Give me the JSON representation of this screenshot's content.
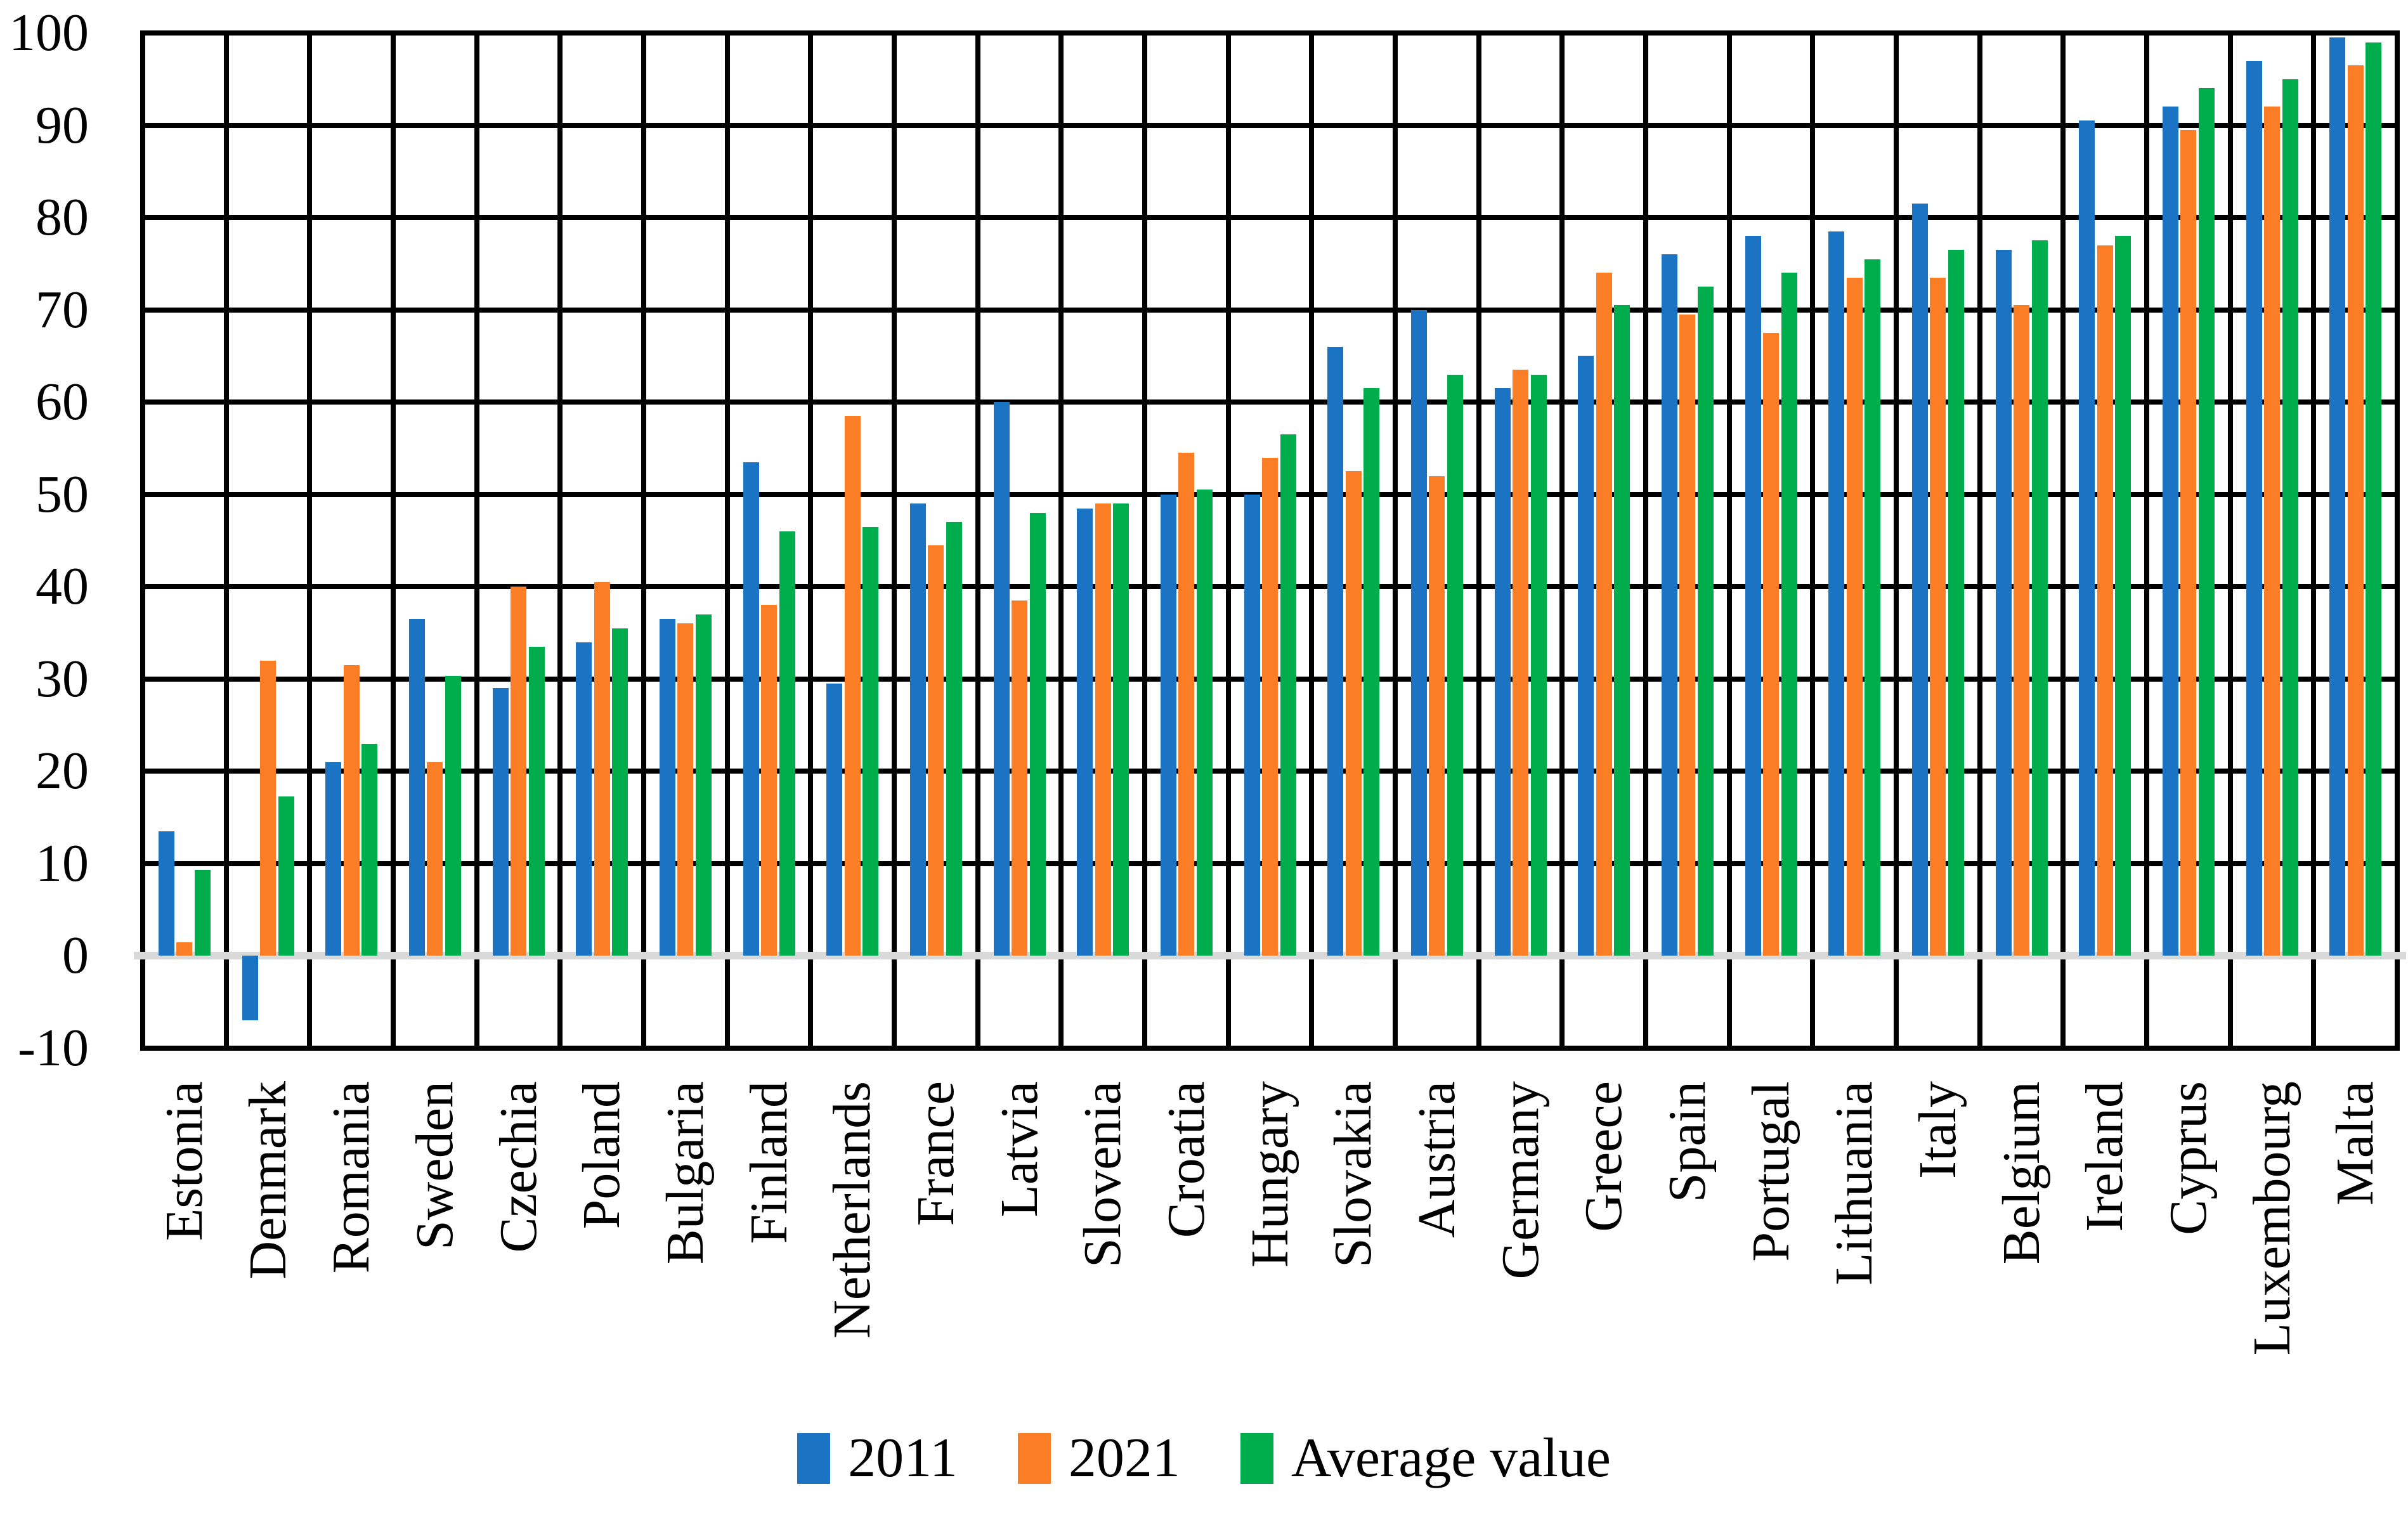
{
  "chart_data": {
    "type": "bar",
    "title": "",
    "xlabel": "",
    "ylabel": "",
    "ylim": [
      -10,
      100
    ],
    "ytick_step": 10,
    "yticks": [
      100,
      90,
      80,
      70,
      60,
      50,
      40,
      30,
      20,
      10,
      0,
      -10
    ],
    "grid": "both",
    "grid_color": "#000000",
    "zero_line_color": "#d9d9d9",
    "background_color": "#ffffff",
    "legend_position": "bottom",
    "categories": [
      "Estonia",
      "Denmark",
      "Romania",
      "Sweden",
      "Czechia",
      "Poland",
      "Bulgaria",
      "Finland",
      "Netherlands",
      "France",
      "Latvia",
      "Slovenia",
      "Croatia",
      "Hungary",
      "Slovakia",
      "Austria",
      "Germany",
      "Greece",
      "Spain",
      "Portugal",
      "Lithuania",
      "Italy",
      "Belgium",
      "Ireland",
      "Cyprus",
      "Luxembourg",
      "Malta"
    ],
    "series": [
      {
        "name": "2011",
        "color": "#1b73c4",
        "values": [
          13.5,
          -7,
          21,
          36.5,
          29,
          34,
          36.5,
          53.5,
          29.5,
          49,
          60,
          48.5,
          50,
          50,
          66,
          70,
          61.5,
          65,
          76,
          78,
          78.5,
          81.5,
          76.5,
          90.5,
          92,
          97,
          99.5
        ]
      },
      {
        "name": "2021",
        "color": "#fb7d26",
        "values": [
          1.5,
          32,
          31.5,
          21,
          40,
          40.5,
          36,
          38,
          58.5,
          44.5,
          38.5,
          49,
          54.5,
          54,
          52.5,
          52,
          63.5,
          74,
          69.5,
          67.5,
          73.5,
          73.5,
          70.5,
          77,
          89.5,
          92,
          96.5
        ]
      },
      {
        "name": "Average value",
        "color": "#00ad4d",
        "values": [
          9.3,
          17.3,
          23,
          30.3,
          33.5,
          35.5,
          37,
          46,
          46.5,
          47,
          48,
          49,
          50.5,
          56.5,
          61.5,
          63,
          63,
          70.5,
          72.5,
          74,
          75.5,
          76.5,
          77.5,
          78,
          94,
          95,
          99
        ]
      }
    ]
  }
}
